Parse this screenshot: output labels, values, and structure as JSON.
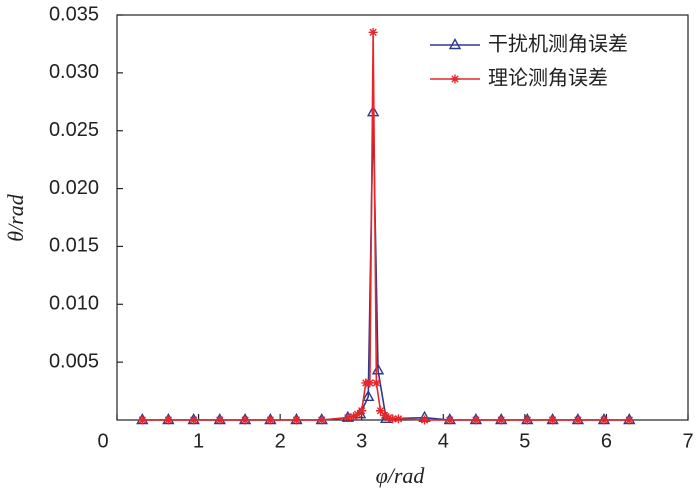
{
  "chart_data": {
    "type": "line",
    "xlabel": "φ/rad",
    "ylabel": "θ/rad",
    "xlim": [
      0,
      7
    ],
    "xticks": [
      0,
      1,
      2,
      3,
      4,
      5,
      6,
      7
    ],
    "ylim": [
      0,
      0.035
    ],
    "yticks": [
      0.005,
      {
        "value": 0.01,
        "label": "0.010"
      },
      0.015,
      {
        "value": 0.02,
        "label": "0.020"
      },
      0.025,
      {
        "value": 0.03,
        "label": "0.030"
      },
      0.035
    ],
    "legend": "upper right",
    "series": [
      {
        "name": "干扰机测角误差",
        "color": "#2b3a8c",
        "marker": "triangle",
        "x": [
          0.31,
          0.63,
          0.94,
          1.26,
          1.57,
          1.88,
          2.2,
          2.51,
          2.83,
          2.98,
          3.08,
          3.14,
          3.2,
          3.3,
          3.77,
          4.08,
          4.4,
          4.71,
          5.03,
          5.34,
          5.65,
          5.97,
          6.28
        ],
        "values": [
          0,
          0,
          0,
          0,
          0,
          0,
          0,
          0,
          0.0002,
          0.0005,
          0.002,
          0.0266,
          0.0043,
          0.0001,
          0.0002,
          0,
          0,
          0,
          0,
          0,
          0,
          0,
          0
        ]
      },
      {
        "name": "理论测角误差",
        "color": "#e8262a",
        "marker": "star",
        "x": [
          0.31,
          0.63,
          0.94,
          1.26,
          1.57,
          1.88,
          2.2,
          2.51,
          2.83,
          2.9,
          2.95,
          3.0,
          3.05,
          3.1,
          3.14,
          3.18,
          3.23,
          3.28,
          3.33,
          3.38,
          3.45,
          3.77,
          4.08,
          4.4,
          4.71,
          5.03,
          5.34,
          5.65,
          5.97,
          6.28
        ],
        "values": [
          0,
          0,
          0,
          0,
          0,
          0,
          0,
          0,
          0.0002,
          0.0003,
          0.0005,
          0.0008,
          0.0032,
          0.0032,
          0.0335,
          0.0032,
          0.0008,
          0.0004,
          0.0002,
          0.0001,
          0.0001,
          0,
          0,
          0,
          0,
          0,
          0,
          0,
          0,
          0
        ]
      }
    ]
  }
}
